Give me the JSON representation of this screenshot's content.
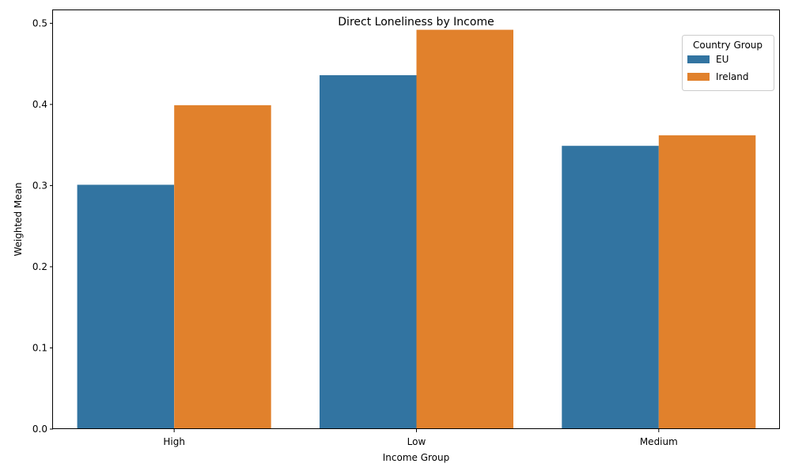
{
  "chart_data": {
    "type": "bar",
    "title": "Direct Loneliness by Income",
    "xlabel": "Income Group",
    "ylabel": "Weighted Mean",
    "categories": [
      "High",
      "Low",
      "Medium"
    ],
    "series": [
      {
        "name": "EU",
        "values": [
          0.301,
          0.436,
          0.349
        ],
        "color": "#3274a1"
      },
      {
        "name": "Ireland",
        "values": [
          0.399,
          0.492,
          0.362
        ],
        "color": "#e1812c"
      }
    ],
    "ylim": [
      0,
      0.516
    ],
    "yticks": [
      "0.0",
      "0.1",
      "0.2",
      "0.3",
      "0.4",
      "0.5"
    ],
    "ytick_values": [
      0,
      0.1,
      0.2,
      0.3,
      0.4,
      0.5
    ],
    "grid": false,
    "legend": {
      "title": "Country Group",
      "placement": "top-right"
    }
  }
}
